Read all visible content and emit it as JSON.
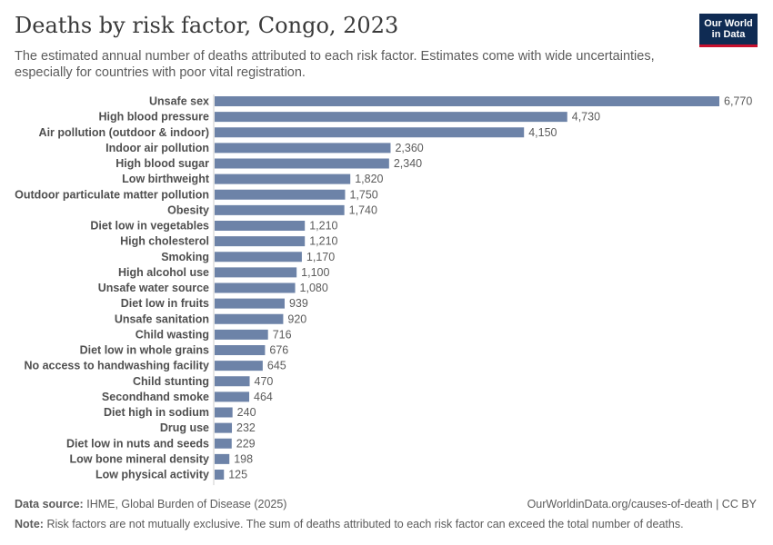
{
  "header": {
    "title": "Deaths by risk factor, Congo, 2023",
    "subtitle": "The estimated annual number of deaths attributed to each risk factor. Estimates come with wide uncertainties, especially for countries with poor vital registration."
  },
  "logo": {
    "line1": "Our World",
    "line2": "in Data",
    "background": "#0f2b53",
    "accent": "#c8102e"
  },
  "footer": {
    "source_label": "Data source:",
    "source_text": "IHME, Global Burden of Disease (2025)",
    "url": "OurWorldinData.org/causes-of-death | CC BY",
    "note_label": "Note:",
    "note_text": "Risk factors are not mutually exclusive. The sum of deaths attributed to each risk factor can exceed the total number of deaths."
  },
  "chart_data": {
    "type": "bar",
    "orientation": "horizontal",
    "bar_color": "#6d83a8",
    "categories": [
      "Unsafe sex",
      "High blood pressure",
      "Air pollution (outdoor & indoor)",
      "Indoor air pollution",
      "High blood sugar",
      "Low birthweight",
      "Outdoor particulate matter pollution",
      "Obesity",
      "Diet low in vegetables",
      "High cholesterol",
      "Smoking",
      "High alcohol use",
      "Unsafe water source",
      "Diet low in fruits",
      "Unsafe sanitation",
      "Child wasting",
      "Diet low in whole grains",
      "No access to handwashing facility",
      "Child stunting",
      "Secondhand smoke",
      "Diet high in sodium",
      "Drug use",
      "Diet low in nuts and seeds",
      "Low bone mineral density",
      "Low physical activity"
    ],
    "values": [
      6770,
      4730,
      4150,
      2360,
      2340,
      1820,
      1750,
      1740,
      1210,
      1210,
      1170,
      1100,
      1080,
      939,
      920,
      716,
      676,
      645,
      470,
      464,
      240,
      232,
      229,
      198,
      125
    ],
    "value_labels": [
      "6,770",
      "4,730",
      "4,150",
      "2,360",
      "2,340",
      "1,820",
      "1,750",
      "1,740",
      "1,210",
      "1,210",
      "1,170",
      "1,100",
      "1,080",
      "939",
      "920",
      "716",
      "676",
      "645",
      "470",
      "464",
      "240",
      "232",
      "229",
      "198",
      "125"
    ],
    "xlim": [
      0,
      6770
    ],
    "grid": false,
    "legend": "none"
  }
}
